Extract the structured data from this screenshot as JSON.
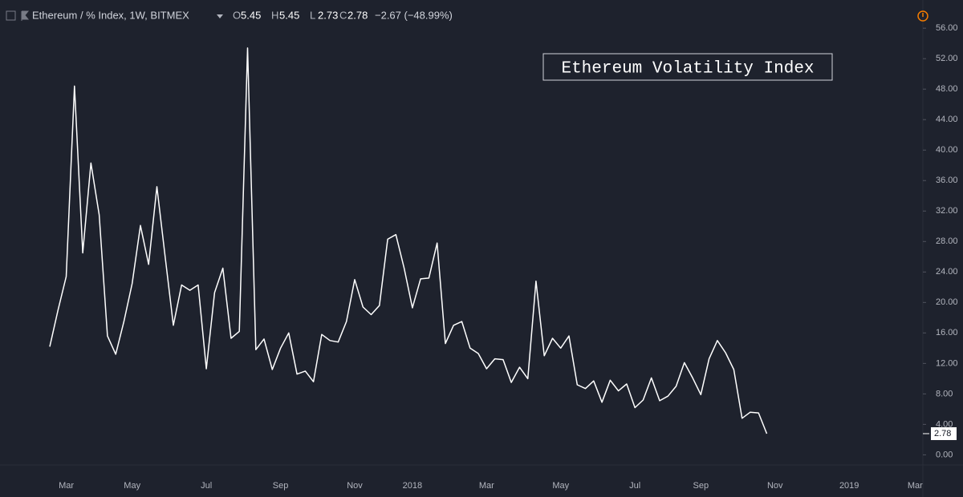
{
  "header": {
    "symbol": "Ethereum / % Index, 1W, BITMEX",
    "ohlc": [
      {
        "label": "O",
        "value": "5.45"
      },
      {
        "label": "H",
        "value": "5.45"
      },
      {
        "label": "L",
        "value": "2.73"
      },
      {
        "label": "C",
        "value": "2.78"
      }
    ],
    "change": "−2.67 (−48.99%)"
  },
  "chart_data": {
    "type": "line",
    "annotation": "Ethereum Volatility Index",
    "color": "#ffffff",
    "grid": false,
    "categories": [
      null,
      null,
      "Mar",
      null,
      null,
      null,
      null,
      null,
      null,
      null,
      "May",
      null,
      null,
      null,
      null,
      null,
      null,
      null,
      null,
      "Jul",
      null,
      null,
      null,
      null,
      null,
      null,
      null,
      null,
      "Sep",
      null,
      null,
      null,
      null,
      null,
      null,
      null,
      null,
      "Nov",
      null,
      null,
      null,
      null,
      null,
      null,
      "2018",
      null,
      null,
      null,
      null,
      null,
      null,
      null,
      null,
      "Mar",
      null,
      null,
      null,
      null,
      null,
      null,
      null,
      null,
      "May",
      null,
      null,
      null,
      null,
      null,
      null,
      null,
      null,
      "Jul",
      null,
      null,
      null,
      null,
      null,
      null,
      null,
      "Sep",
      null,
      null,
      null,
      null,
      null,
      null,
      null,
      null,
      "Nov",
      null,
      null,
      null,
      null,
      null,
      null,
      null,
      null,
      "2019",
      null,
      null,
      null,
      null,
      null,
      null,
      null,
      "Mar"
    ],
    "values": [
      14.2,
      19,
      23.4,
      48.4,
      26.5,
      38.3,
      31.5,
      15.6,
      13.2,
      17.5,
      22.5,
      30.1,
      25,
      35.2,
      26,
      17,
      22.3,
      21.6,
      22.3,
      11.3,
      21.3,
      24.5,
      15.3,
      16.2,
      53.4,
      13.8,
      15.2,
      11.2,
      14,
      16,
      10.6,
      11,
      9.6,
      15.8,
      15,
      14.8,
      17.5,
      23,
      19.4,
      18.4,
      19.6,
      28.3,
      28.9,
      24.5,
      19.3,
      23.1,
      23.2,
      27.8,
      14.6,
      17,
      17.5,
      14,
      13.3,
      11.3,
      12.6,
      12.5,
      9.5,
      11.5,
      10,
      22.8,
      13,
      15.3,
      14,
      15.6,
      9.2,
      8.7,
      9.7,
      6.9,
      9.8,
      8.4,
      9.3,
      6.2,
      7.2,
      10.1,
      7.1,
      7.7,
      9,
      12.1,
      10.1,
      7.9,
      12.6,
      15,
      13.4,
      11.2,
      4.8,
      5.6,
      5.5,
      2.78,
      null,
      null,
      null,
      null,
      null,
      null,
      null,
      null,
      null,
      null,
      null,
      null,
      null,
      null,
      null,
      null,
      null,
      null
    ],
    "ylim": [
      -0.8,
      59.7
    ],
    "yticks": [
      {
        "value": 0,
        "label": "0.00"
      },
      {
        "value": 4,
        "label": "4.00"
      },
      {
        "value": 8,
        "label": "8.00"
      },
      {
        "value": 12,
        "label": "12.00"
      },
      {
        "value": 16,
        "label": "16.00"
      },
      {
        "value": 20,
        "label": "20.00"
      },
      {
        "value": 24,
        "label": "24.00"
      },
      {
        "value": 28,
        "label": "28.00"
      },
      {
        "value": 32,
        "label": "32.00"
      },
      {
        "value": 36,
        "label": "36.00"
      },
      {
        "value": 40,
        "label": "40.00"
      },
      {
        "value": 44,
        "label": "44.00"
      },
      {
        "value": 48,
        "label": "48.00"
      },
      {
        "value": 52,
        "label": "52.00"
      },
      {
        "value": 56,
        "label": "56.00"
      }
    ]
  }
}
